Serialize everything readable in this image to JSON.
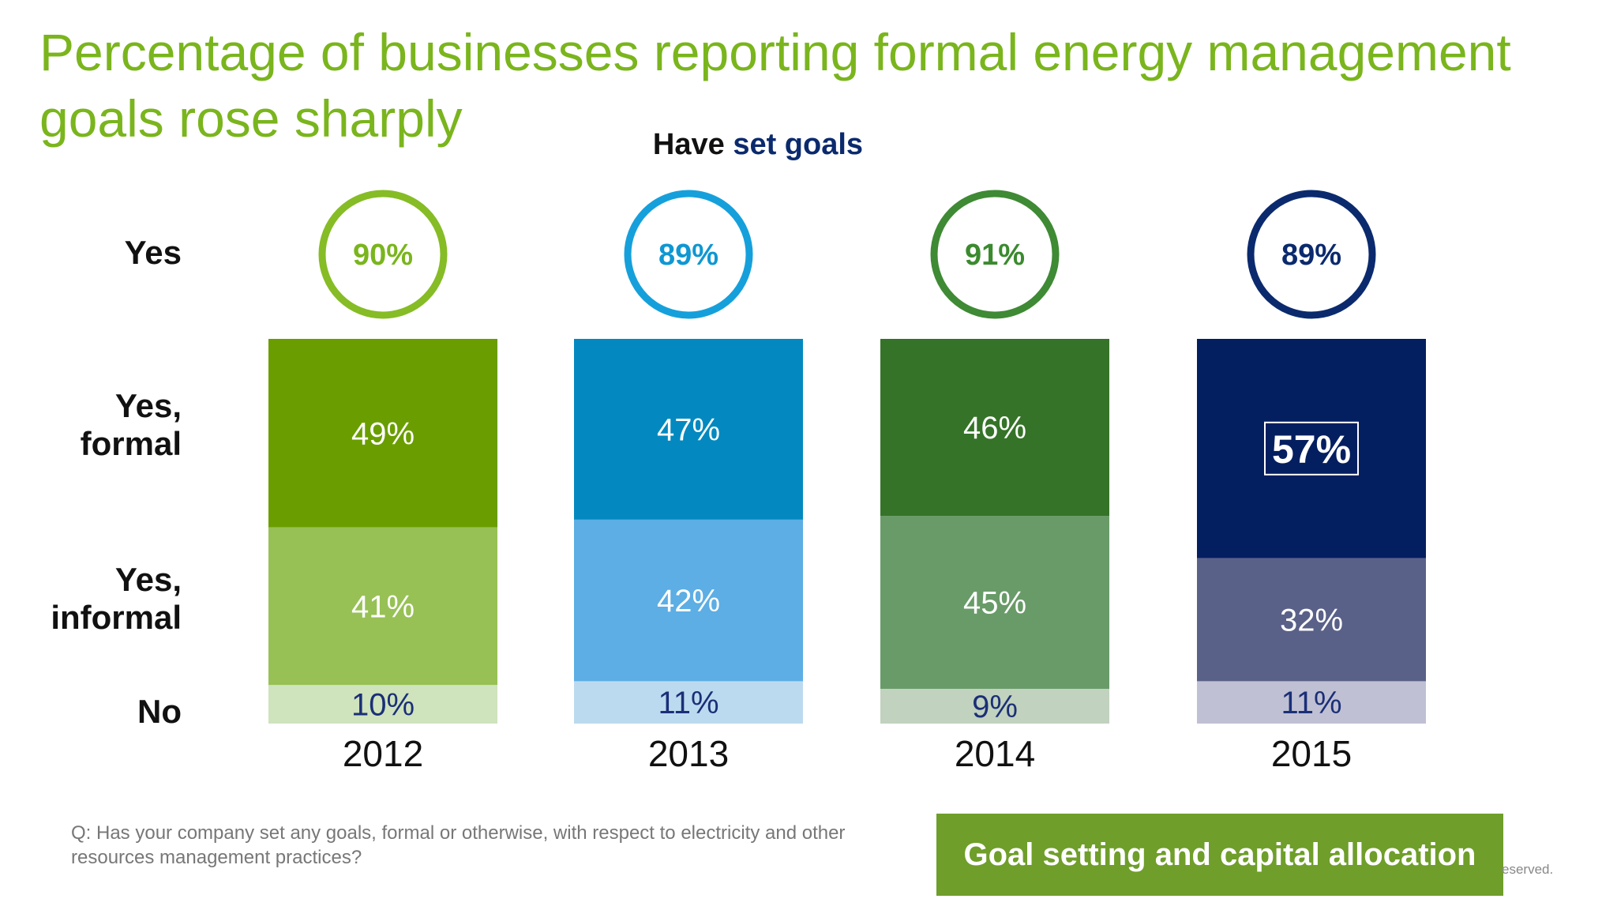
{
  "header": {
    "title": "Percentage of businesses reporting formal energy management goals rose sharply",
    "subtitle_prefix": "Have",
    "subtitle_accent": "set goals"
  },
  "row_labels": {
    "yes": "Yes",
    "formal_line1": "Yes,",
    "formal_line2": "formal",
    "informal_line1": "Yes,",
    "informal_line2": "informal",
    "no": "No"
  },
  "chart_data": {
    "type": "bar",
    "stacked": true,
    "orientation": "vertical",
    "categories": [
      "2012",
      "2013",
      "2014",
      "2015"
    ],
    "series": [
      {
        "name": "Yes, formal",
        "values": [
          49,
          47,
          46,
          57
        ]
      },
      {
        "name": "Yes, informal",
        "values": [
          41,
          42,
          45,
          32
        ]
      },
      {
        "name": "No",
        "values": [
          10,
          11,
          9,
          11
        ]
      }
    ],
    "totals_yes": [
      90,
      89,
      91,
      89
    ],
    "value_suffix": "%",
    "highlighted": {
      "category": "2015",
      "series": "Yes, formal"
    },
    "ylim": [
      0,
      100
    ],
    "grid": false,
    "legend": "left-row-labels",
    "colors": {
      "2012": {
        "formal": "#6a9e00",
        "informal": "#97c155",
        "no": "#cfe3bd",
        "ring": "#86bc25",
        "ring_text": "#7ab51d"
      },
      "2013": {
        "formal": "#0389bf",
        "informal": "#5caee4",
        "no": "#bcdaef",
        "ring": "#16a0db",
        "ring_text": "#0f97d2"
      },
      "2014": {
        "formal": "#357328",
        "informal": "#699b68",
        "no": "#c1d2be",
        "ring": "#3f8a34",
        "ring_text": "#3b8a2f"
      },
      "2015": {
        "formal": "#041f60",
        "informal": "#5a6188",
        "no": "#bfc0d3",
        "ring": "#0b2a6e",
        "ring_text": "#0b2a6e"
      }
    },
    "no_label_color": "#1b2f77",
    "segment_label_color": "#ffffff"
  },
  "footer": {
    "question": "Q: Has your company set any goals, formal or otherwise, with respect to electricity and other resources management practices?",
    "tag": "Goal setting and capital allocation",
    "reserved_fragment": "eserved."
  }
}
